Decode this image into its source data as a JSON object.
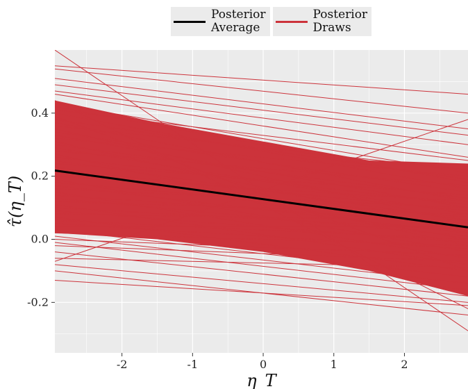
{
  "legend": [
    {
      "line1": "Posterior",
      "line2": "Average",
      "color": "#000000"
    },
    {
      "line1": "Posterior",
      "line2": "Draws",
      "color": "#cc333b"
    }
  ],
  "chart_data": {
    "type": "line",
    "xlabel": "η_T",
    "ylabel": "τ̂(η_T)",
    "xlim": [
      -2.95,
      2.9
    ],
    "ylim": [
      -0.36,
      0.6
    ],
    "xticks": [
      -2,
      -1,
      0,
      1,
      2
    ],
    "xtick_labels": [
      "-2",
      "-1",
      "0",
      "1",
      "2"
    ],
    "yticks": [
      -0.2,
      0.0,
      0.2,
      0.4
    ],
    "ytick_labels": [
      "-0.2",
      "0.0",
      "0.2",
      "0.4"
    ],
    "grid": true,
    "legend_position": "top",
    "colors": {
      "panel": "#ebebeb",
      "grid": "#ffffff",
      "draws": "#cc333b",
      "average": "#000000"
    },
    "series": [
      {
        "name": "Posterior Average",
        "x": [
          -2.95,
          2.9
        ],
        "y": [
          0.218,
          0.038
        ]
      },
      {
        "name": "Posterior Draws",
        "x_range": [
          -2.95,
          2.9
        ],
        "draws": [
          {
            "y_start": 0.6,
            "y_end": -0.29
          },
          {
            "y_start": 0.55,
            "y_end": 0.46
          },
          {
            "y_start": 0.54,
            "y_end": 0.4
          },
          {
            "y_start": 0.51,
            "y_end": 0.35
          },
          {
            "y_start": 0.49,
            "y_end": 0.33
          },
          {
            "y_start": 0.47,
            "y_end": 0.3
          },
          {
            "y_start": 0.46,
            "y_end": 0.26
          },
          {
            "y_start": 0.44,
            "y_end": -0.22
          },
          {
            "y_start": 0.43,
            "y_end": 0.21
          },
          {
            "y_start": 0.42,
            "y_end": 0.18
          },
          {
            "y_start": 0.41,
            "y_end": 0.25
          },
          {
            "y_start": 0.4,
            "y_end": 0.16
          },
          {
            "y_start": 0.39,
            "y_end": -0.1
          },
          {
            "y_start": 0.38,
            "y_end": 0.19
          },
          {
            "y_start": 0.37,
            "y_end": 0.12
          },
          {
            "y_start": 0.36,
            "y_end": 0.22
          },
          {
            "y_start": 0.35,
            "y_end": 0.05
          },
          {
            "y_start": 0.34,
            "y_end": 0.15
          },
          {
            "y_start": 0.33,
            "y_end": 0.1
          },
          {
            "y_start": 0.32,
            "y_end": 0.2
          },
          {
            "y_start": 0.31,
            "y_end": 0.02
          },
          {
            "y_start": 0.3,
            "y_end": 0.13
          },
          {
            "y_start": 0.29,
            "y_end": 0.08
          },
          {
            "y_start": 0.28,
            "y_end": 0.17
          },
          {
            "y_start": 0.27,
            "y_end": -0.02
          },
          {
            "y_start": 0.26,
            "y_end": 0.11
          },
          {
            "y_start": 0.25,
            "y_end": 0.06
          },
          {
            "y_start": 0.24,
            "y_end": 0.14
          },
          {
            "y_start": 0.23,
            "y_end": 0.0
          },
          {
            "y_start": 0.22,
            "y_end": 0.09
          },
          {
            "y_start": 0.21,
            "y_end": 0.04
          },
          {
            "y_start": 0.2,
            "y_end": 0.12
          },
          {
            "y_start": 0.19,
            "y_end": -0.04
          },
          {
            "y_start": 0.18,
            "y_end": 0.07
          },
          {
            "y_start": 0.17,
            "y_end": 0.02
          },
          {
            "y_start": 0.16,
            "y_end": 0.1
          },
          {
            "y_start": 0.15,
            "y_end": -0.06
          },
          {
            "y_start": 0.14,
            "y_end": 0.05
          },
          {
            "y_start": 0.13,
            "y_end": 0.01
          },
          {
            "y_start": 0.12,
            "y_end": 0.08
          },
          {
            "y_start": 0.11,
            "y_end": -0.08
          },
          {
            "y_start": 0.1,
            "y_end": 0.03
          },
          {
            "y_start": 0.09,
            "y_end": -0.01
          },
          {
            "y_start": 0.08,
            "y_end": 0.06
          },
          {
            "y_start": 0.07,
            "y_end": -0.1
          },
          {
            "y_start": 0.06,
            "y_end": 0.0
          },
          {
            "y_start": 0.05,
            "y_end": -0.03
          },
          {
            "y_start": 0.04,
            "y_end": 0.04
          },
          {
            "y_start": 0.03,
            "y_end": -0.12
          },
          {
            "y_start": 0.02,
            "y_end": -0.02
          },
          {
            "y_start": 0.01,
            "y_end": -0.14
          },
          {
            "y_start": 0.0,
            "y_end": -0.05
          },
          {
            "y_start": -0.01,
            "y_end": -0.16
          },
          {
            "y_start": -0.02,
            "y_end": -0.07
          },
          {
            "y_start": -0.04,
            "y_end": -0.18
          },
          {
            "y_start": -0.06,
            "y_end": -0.09
          },
          {
            "y_start": -0.07,
            "y_end": 0.38
          },
          {
            "y_start": -0.08,
            "y_end": -0.2
          },
          {
            "y_start": -0.1,
            "y_end": -0.24
          },
          {
            "y_start": -0.13,
            "y_end": -0.21
          }
        ]
      }
    ]
  }
}
